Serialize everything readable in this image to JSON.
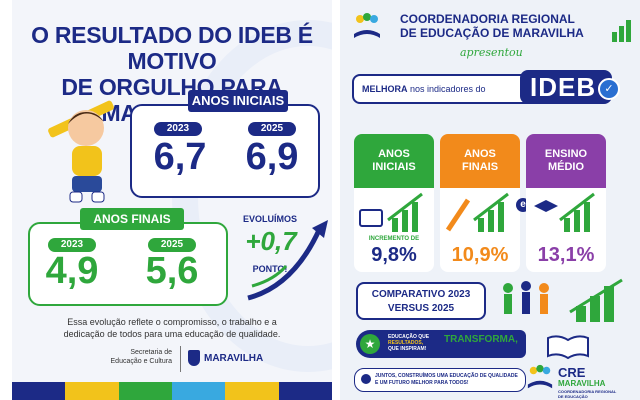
{
  "left": {
    "headline": [
      "O RESULTADO DO IDEB É MOTIVO",
      "DE ORGULHO PARA MARAVILHA!"
    ],
    "anos_iniciais": {
      "title": "ANOS INICIAIS",
      "y1": "2023",
      "v1": "6,7",
      "y2": "2025",
      "v2": "6,9"
    },
    "anos_finais": {
      "title": "ANOS FINAIS",
      "y1": "2023",
      "v1": "4,9",
      "y2": "2025",
      "v2": "5,6"
    },
    "evolucao": {
      "title": "EVOLUÍMOS",
      "value": "+0,7",
      "unit": "PONTO!"
    },
    "closing": [
      "Essa evolução reflete o compromisso, o trabalho e a",
      "dedicação de todos para uma educação de qualidade."
    ],
    "footer": {
      "secretaria": [
        "Secretaria de",
        "Educação e Cultura"
      ],
      "municipio": "MARAVILHA"
    },
    "stripe_colors": [
      "#1c2a86",
      "#f2c31b",
      "#2fa73c",
      "#39a9e0",
      "#f2c31b",
      "#1c2a86"
    ]
  },
  "right": {
    "title": [
      "COORDENADORIA REGIONAL",
      "DE EDUCAÇÃO DE MARAVILHA"
    ],
    "apresentou": "apresentou",
    "banner": {
      "bold": "MELHORA",
      "rest": " nos indicadores do",
      "ideb": "IDEB"
    },
    "cards": [
      {
        "title": [
          "ANOS",
          "INICIAIS"
        ],
        "color": "#2fa73c",
        "sub": "INCREMENTO DE",
        "value": "9,8%"
      },
      {
        "title": [
          "ANOS",
          "FINAIS"
        ],
        "color": "#f28a1b",
        "sub": "",
        "value": "10,9%"
      },
      {
        "title": [
          "ENSINO",
          "MÉDIO"
        ],
        "color": "#8a3fa8",
        "sub": "",
        "value": "13,1%"
      }
    ],
    "connector": "e",
    "comparativo": [
      "COMPARATIVO 2023",
      "VERSUS 2025"
    ],
    "slogan": {
      "small": [
        "EDUCAÇÃO QUE",
        "RESULTADOS,",
        "QUE INSPIRAM!"
      ],
      "big": "TRANSFORMA,"
    },
    "juntos": [
      "JUNTOS, CONSTRUÍMOS UMA EDUCAÇÃO DE QUALIDADE",
      "E UM FUTURO MELHOR PARA TODOS!"
    ],
    "cre_logo": [
      "CRE",
      "MARAVILHA",
      "COORDENADORIA REGIONAL",
      "DE EDUCAÇÃO"
    ]
  }
}
